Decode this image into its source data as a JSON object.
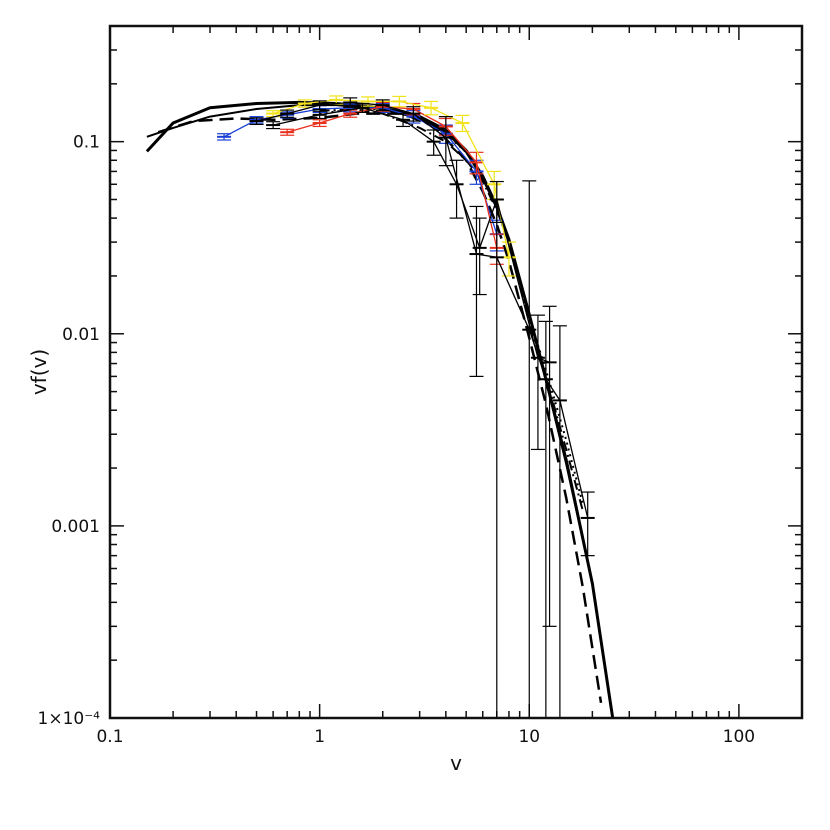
{
  "chart_data": {
    "type": "line",
    "title": "",
    "xlabel": "v",
    "ylabel": "vf(v)",
    "xscale": "log",
    "yscale": "log",
    "xlim": [
      0.1,
      200
    ],
    "ylim": [
      0.0001,
      0.4
    ],
    "grid": false,
    "x_tick_labels": [
      {
        "value": 0.1,
        "label": "0.1"
      },
      {
        "value": 1,
        "label": "1"
      },
      {
        "value": 10,
        "label": "10"
      },
      {
        "value": 100,
        "label": "100"
      }
    ],
    "y_tick_labels": [
      {
        "value": 0.1,
        "label": "0.1"
      },
      {
        "value": 0.01,
        "label": "0.01"
      },
      {
        "value": 0.001,
        "label": "0.001"
      },
      {
        "value": 0.0001,
        "label": "1×10⁻⁴"
      }
    ],
    "series": [
      {
        "style": "solid-thick",
        "color": "#000000",
        "x": [
          0.15,
          0.2,
          0.3,
          0.5,
          0.8,
          1.2,
          2,
          3,
          4,
          5,
          6,
          7,
          8,
          10,
          12,
          15,
          20,
          25
        ],
        "y": [
          0.089,
          0.125,
          0.15,
          0.158,
          0.16,
          0.158,
          0.15,
          0.135,
          0.115,
          0.09,
          0.066,
          0.046,
          0.031,
          0.0126,
          0.0058,
          0.0022,
          0.0005,
          0.0001
        ]
      },
      {
        "style": "solid",
        "color": "#000000",
        "x": [
          0.15,
          0.2,
          0.3,
          0.5,
          0.8,
          1.2,
          2,
          3,
          4,
          5,
          6,
          7,
          8,
          10,
          12,
          15,
          20,
          25
        ],
        "y": [
          0.106,
          0.118,
          0.135,
          0.148,
          0.155,
          0.155,
          0.148,
          0.132,
          0.112,
          0.088,
          0.064,
          0.045,
          0.03,
          0.0125,
          0.0057,
          0.0021,
          0.0005,
          0.0001
        ]
      },
      {
        "style": "dashed",
        "color": "#000000",
        "x": [
          0.17,
          0.25,
          0.4,
          0.6,
          1,
          1.5,
          2.5,
          3.5,
          5,
          6,
          7,
          8,
          10,
          12,
          15,
          18,
          22
        ],
        "y": [
          0.112,
          0.128,
          0.132,
          0.13,
          0.133,
          0.14,
          0.14,
          0.12,
          0.08,
          0.055,
          0.037,
          0.024,
          0.0095,
          0.0043,
          0.0014,
          0.00048,
          0.00012
        ]
      },
      {
        "style": "dotted",
        "color": "#000000",
        "x": [
          1,
          1.5,
          2,
          3,
          4,
          5,
          6,
          7,
          8,
          10,
          12,
          15,
          18
        ],
        "y": [
          0.14,
          0.148,
          0.148,
          0.13,
          0.11,
          0.088,
          0.066,
          0.046,
          0.03,
          0.012,
          0.0065,
          0.0028,
          0.0013
        ]
      },
      {
        "style": "dashdot",
        "color": "#000000",
        "x": [
          1,
          1.5,
          2,
          3,
          4,
          5,
          6,
          7,
          8,
          10,
          12,
          15,
          18
        ],
        "y": [
          0.145,
          0.147,
          0.14,
          0.118,
          0.1,
          0.08,
          0.062,
          0.044,
          0.03,
          0.0115,
          0.006,
          0.0025,
          0.0012
        ]
      },
      {
        "style": "data",
        "color": "#1a3fd6",
        "x": [
          0.35,
          0.5,
          0.7,
          1,
          1.4,
          2,
          2.8,
          4,
          5.6,
          7
        ],
        "y": [
          0.106,
          0.13,
          0.138,
          0.148,
          0.15,
          0.15,
          0.135,
          0.11,
          0.07,
          0.033
        ],
        "err": [
          0.004,
          0.005,
          0.005,
          0.006,
          0.007,
          0.008,
          0.01,
          0.012,
          0.01,
          0.006
        ]
      },
      {
        "style": "data",
        "color": "#e8301c",
        "x": [
          0.7,
          1,
          1.4,
          2,
          2.8,
          4,
          5.6,
          7
        ],
        "y": [
          0.112,
          0.125,
          0.14,
          0.152,
          0.148,
          0.12,
          0.078,
          0.028
        ],
        "err": [
          0.004,
          0.005,
          0.006,
          0.008,
          0.01,
          0.012,
          0.01,
          0.005
        ]
      },
      {
        "style": "data",
        "color": "#f2e21a",
        "x": [
          0.6,
          0.85,
          1.2,
          1.7,
          2.4,
          3.4,
          4.8,
          6.8,
          8
        ],
        "y": [
          0.14,
          0.158,
          0.165,
          0.162,
          0.162,
          0.15,
          0.125,
          0.06,
          0.025
        ],
        "err": [
          0.005,
          0.007,
          0.008,
          0.009,
          0.01,
          0.012,
          0.012,
          0.01,
          0.005
        ]
      },
      {
        "style": "data",
        "color": "#000000",
        "x": [
          0.5,
          0.7,
          1,
          1.4,
          2,
          2.8,
          4,
          5.6,
          7,
          10,
          12,
          14,
          19
        ],
        "y": [
          0.128,
          0.14,
          0.155,
          0.16,
          0.155,
          0.14,
          0.105,
          0.026,
          0.025,
          0.0105,
          0.0058,
          0.0045,
          0.0011
        ],
        "err": [
          0.005,
          0.006,
          0.008,
          0.009,
          0.01,
          0.012,
          0.03,
          0.02,
          0.025,
          0.052,
          0.0058,
          0.0065,
          0.0004
        ]
      },
      {
        "style": "data",
        "color": "#000000",
        "x": [
          0.6,
          1,
          1.6,
          2.5,
          3.5,
          4.5,
          5.8,
          7,
          11,
          12.5
        ],
        "y": [
          0.122,
          0.138,
          0.15,
          0.13,
          0.1,
          0.06,
          0.028,
          0.05,
          0.0075,
          0.0071
        ],
        "err": [
          0.005,
          0.006,
          0.008,
          0.01,
          0.015,
          0.02,
          0.012,
          0.012,
          0.005,
          0.0068
        ]
      }
    ]
  }
}
